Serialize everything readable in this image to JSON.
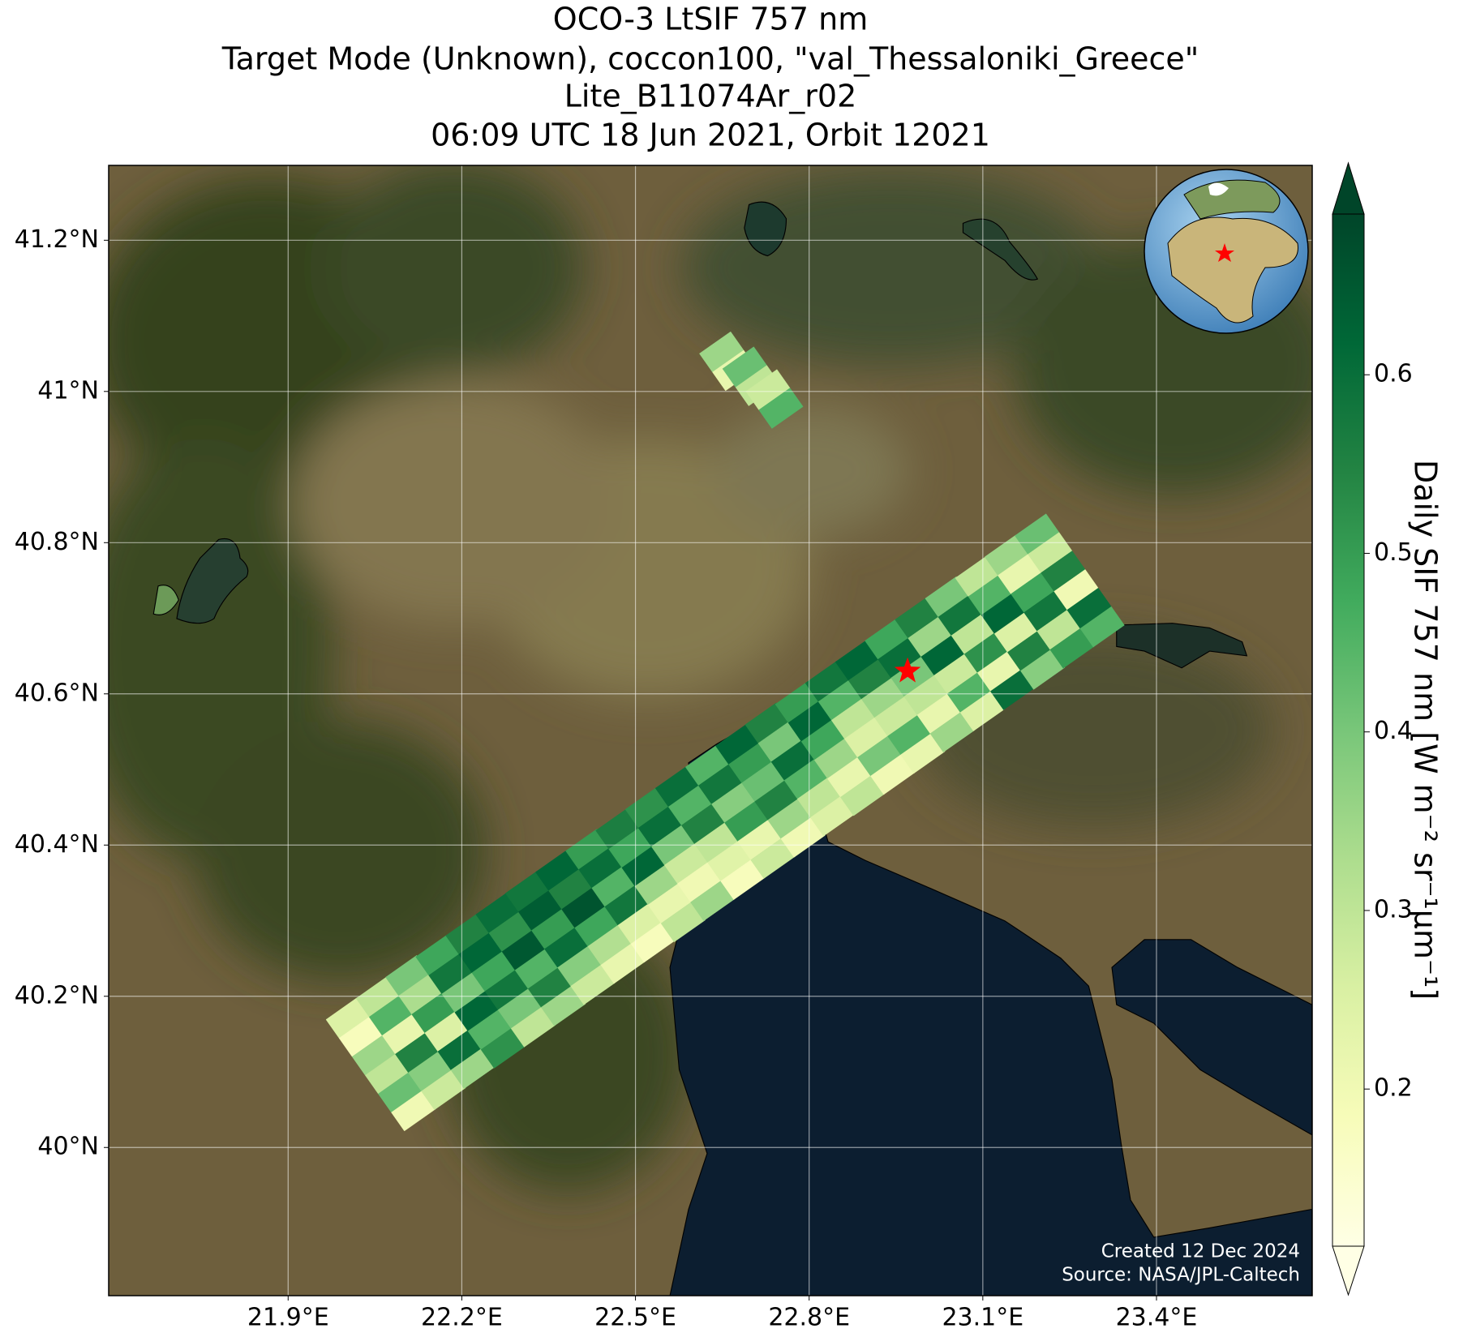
{
  "chart_data": {
    "type": "map",
    "title": "OCO-3 LtSIF 757 nm",
    "subtitle": [
      "Target Mode (Unknown), coccon100, \"val_Thessaloniki_Greece\"",
      "Lite_B11074Ar_r02",
      "06:09 UTC 18 Jun 2021, Orbit 12021"
    ],
    "xlim": [
      21.59,
      23.669
    ],
    "ylim": [
      39.804,
      41.299
    ],
    "xticks": [
      {
        "value": 21.9,
        "label": "21.9°E"
      },
      {
        "value": 22.2,
        "label": "22.2°E"
      },
      {
        "value": 22.5,
        "label": "22.5°E"
      },
      {
        "value": 22.8,
        "label": "22.8°E"
      },
      {
        "value": 23.1,
        "label": "23.1°E"
      },
      {
        "value": 23.4,
        "label": "23.4°E"
      }
    ],
    "yticks": [
      {
        "value": 40,
        "label": "40°N"
      },
      {
        "value": 40.2,
        "label": "40.2°N"
      },
      {
        "value": 40.4,
        "label": "40.4°N"
      },
      {
        "value": 40.6,
        "label": "40.6°N"
      },
      {
        "value": 40.8,
        "label": "40.8°N"
      },
      {
        "value": 41,
        "label": "41°N"
      },
      {
        "value": 41.2,
        "label": "41.2°N"
      }
    ],
    "grid": true,
    "colormap": "YlGn",
    "clim": [
      0.112,
      0.69
    ],
    "cticks": [
      0.2,
      0.3,
      0.4,
      0.5,
      0.6
    ],
    "colorbar_label": "Daily SIF 757 nm [W m⁻² sr⁻¹μm⁻¹]",
    "target": {
      "lon": 22.97,
      "lat": 40.63,
      "color": "#ff0000"
    },
    "rows": [
      {
        "lon": 22.06,
        "lat": 40.11,
        "values": [
          0.25,
          0.18,
          0.35,
          0.3,
          0.42,
          0.2
        ]
      },
      {
        "lon": 22.112,
        "lat": 40.138,
        "values": [
          0.3,
          0.45,
          0.22,
          0.55,
          0.38,
          0.28
        ]
      },
      {
        "lon": 22.163,
        "lat": 40.166,
        "values": [
          0.4,
          0.33,
          0.5,
          0.25,
          0.6,
          0.35
        ]
      },
      {
        "lon": 22.215,
        "lat": 40.193,
        "values": [
          0.48,
          0.58,
          0.4,
          0.62,
          0.45,
          0.52
        ]
      },
      {
        "lon": 22.267,
        "lat": 40.221,
        "values": [
          0.55,
          0.62,
          0.48,
          0.58,
          0.4,
          0.3
        ]
      },
      {
        "lon": 22.319,
        "lat": 40.249,
        "values": [
          0.6,
          0.52,
          0.65,
          0.45,
          0.55,
          0.35
        ]
      },
      {
        "lon": 22.37,
        "lat": 40.277,
        "values": [
          0.58,
          0.64,
          0.5,
          0.6,
          0.38,
          0.28
        ]
      },
      {
        "lon": 22.422,
        "lat": 40.305,
        "values": [
          0.62,
          0.55,
          0.66,
          0.48,
          0.32,
          0.22
        ]
      },
      {
        "lon": 22.474,
        "lat": 40.333,
        "values": [
          0.5,
          0.6,
          0.45,
          0.58,
          0.25,
          0.18
        ]
      },
      {
        "lon": 22.526,
        "lat": 40.36,
        "values": [
          0.56,
          0.48,
          0.62,
          0.35,
          0.22,
          0.3
        ]
      },
      {
        "lon": 22.577,
        "lat": 40.388,
        "values": [
          0.52,
          0.6,
          0.4,
          0.28,
          0.2,
          0.35
        ]
      },
      {
        "lon": 22.629,
        "lat": 40.416,
        "values": [
          0.6,
          0.45,
          0.55,
          0.3,
          0.24,
          0.18
        ]
      },
      {
        "lon": 22.681,
        "lat": 40.444,
        "values": [
          0.45,
          0.58,
          0.38,
          0.5,
          0.22,
          0.28
        ]
      },
      {
        "lon": 22.733,
        "lat": 40.472,
        "values": [
          0.62,
          0.5,
          0.42,
          0.55,
          0.35,
          0.2
        ]
      },
      {
        "lon": 22.784,
        "lat": 40.5,
        "values": [
          0.55,
          0.4,
          0.6,
          0.45,
          0.3,
          0.25
        ]
      },
      {
        "lon": 22.836,
        "lat": 40.527,
        "values": [
          0.5,
          0.62,
          0.48,
          0.35,
          0.22,
          0.3
        ]
      },
      {
        "lon": 22.888,
        "lat": 40.555,
        "values": [
          0.58,
          0.45,
          0.3,
          0.25,
          0.4,
          0.2
        ]
      },
      {
        "lon": 22.94,
        "lat": 40.583,
        "values": [
          0.62,
          0.55,
          0.35,
          0.28,
          0.45,
          0.22
        ]
      },
      {
        "lon": 22.991,
        "lat": 40.611,
        "values": [
          0.48,
          0.6,
          0.4,
          0.3,
          0.22,
          0.35
        ]
      },
      {
        "lon": 23.043,
        "lat": 40.639,
        "values": [
          0.55,
          0.35,
          0.62,
          0.28,
          0.45,
          0.25
        ]
      },
      {
        "lon": 23.095,
        "lat": 40.667,
        "values": [
          0.4,
          0.58,
          0.3,
          0.52,
          0.22,
          0.6
        ]
      },
      {
        "lon": 23.147,
        "lat": 40.694,
        "values": [
          0.3,
          0.45,
          0.62,
          0.25,
          0.55,
          0.38
        ]
      },
      {
        "lon": 23.198,
        "lat": 40.722,
        "values": [
          0.35,
          0.22,
          0.48,
          0.58,
          0.3,
          0.5
        ]
      },
      {
        "lon": 23.25,
        "lat": 40.75,
        "values": [
          0.42,
          0.28,
          0.55,
          0.2,
          0.6,
          0.45
        ]
      },
      {
        "lon": 22.66,
        "lat": 41.04,
        "values": [
          0.35,
          0.22
        ]
      },
      {
        "lon": 22.7,
        "lat": 41.02,
        "values": [
          0.42,
          0.3
        ]
      },
      {
        "lon": 22.74,
        "lat": 40.99,
        "values": [
          0.28,
          0.45
        ]
      }
    ],
    "credits": [
      "Created 12 Dec 2024",
      "Source: NASA/JPL-Caltech"
    ]
  }
}
